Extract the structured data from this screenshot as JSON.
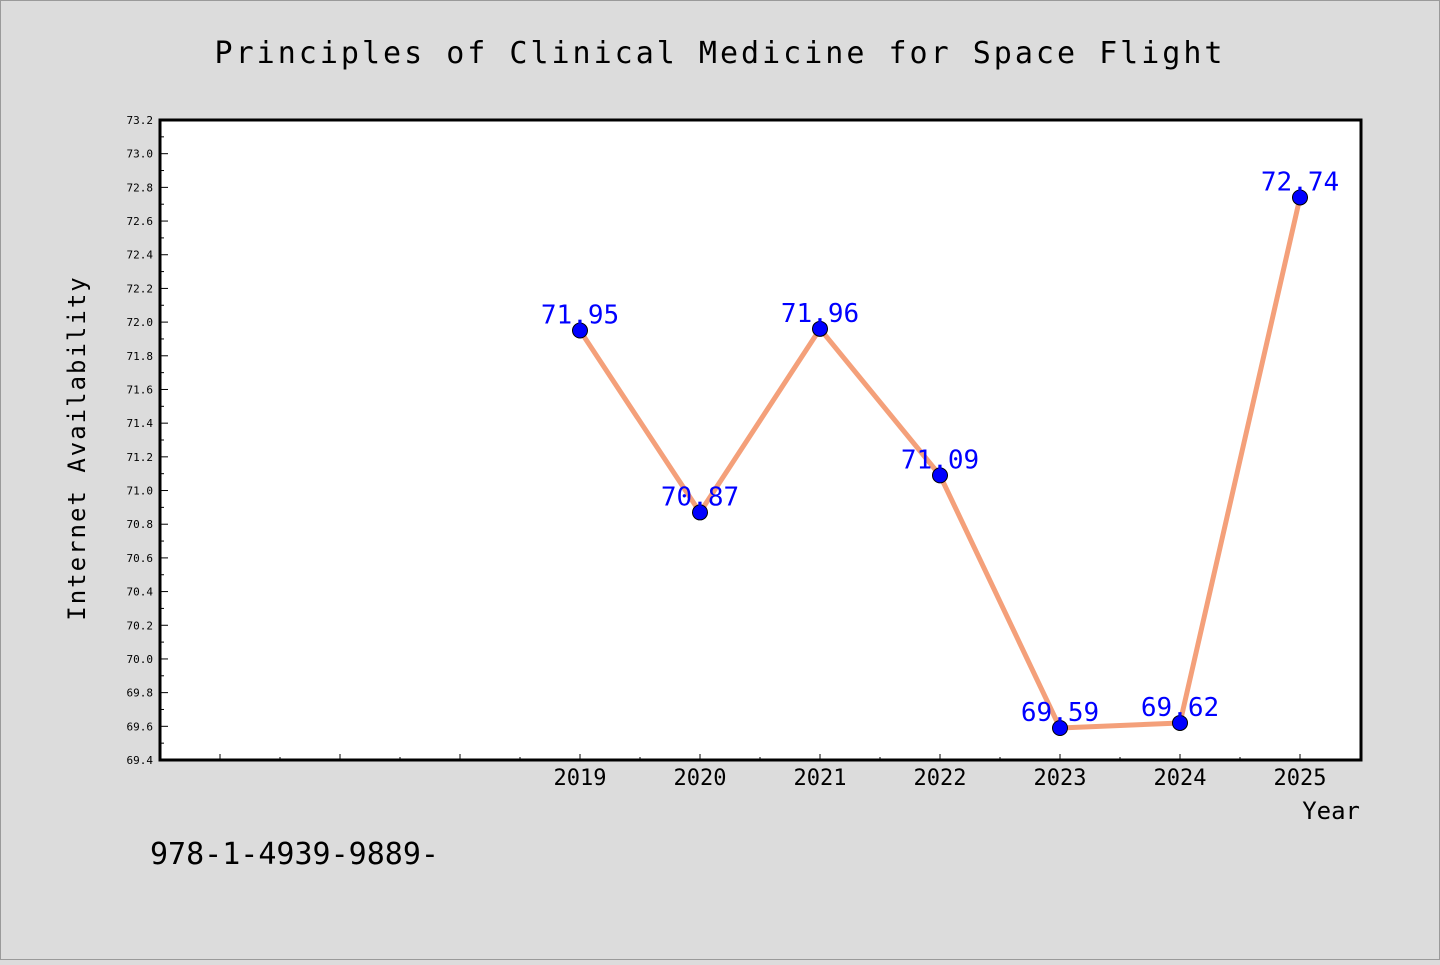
{
  "chart_data": {
    "type": "line",
    "title": "Principles of Clinical Medicine for Space Flight",
    "xlabel": "Year",
    "ylabel": "Internet Availability",
    "categories": [
      "2019",
      "2020",
      "2021",
      "2022",
      "2023",
      "2024",
      "2025"
    ],
    "series": [
      {
        "values": [
          71.95,
          70.87,
          71.96,
          71.09,
          69.59,
          69.62,
          72.74
        ]
      }
    ],
    "data_labels": [
      "71.95",
      "70.87",
      "71.96",
      "71.09",
      "69.59",
      "69.62",
      "72.74"
    ],
    "ylim": [
      69.4,
      73.2
    ],
    "yticks": [
      "69.4",
      "69.6",
      "69.8",
      "70.0",
      "70.2",
      "70.4",
      "70.6",
      "70.8",
      "71.0",
      "71.2",
      "71.4",
      "71.6",
      "71.8",
      "72.0",
      "72.2",
      "72.4",
      "72.6",
      "72.8",
      "73.0",
      "73.2"
    ],
    "grid": false,
    "line_color": "#f4a07a",
    "marker_color": "#0000ff",
    "label_color": "#0000ff",
    "background_color": "#dcdcdc",
    "plot_background": "#ffffff"
  },
  "footer_text": "978-1-4939-9889-"
}
